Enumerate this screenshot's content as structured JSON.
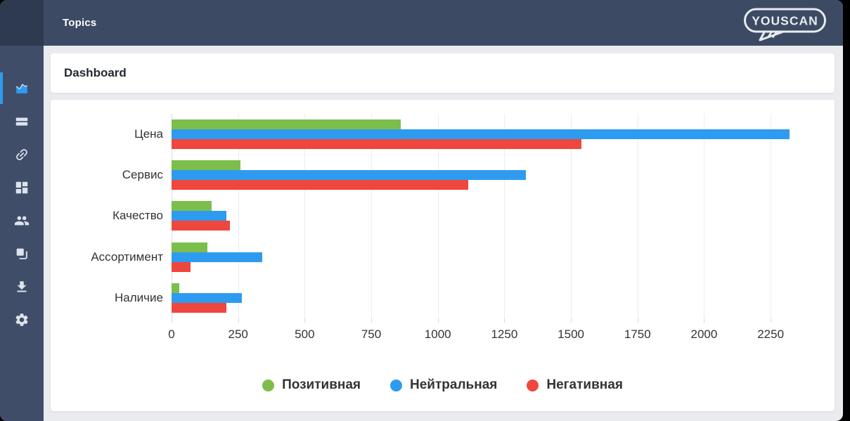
{
  "app": {
    "header_title": "Topics",
    "logo_text": "YOUSCAN",
    "page_title": "Dashboard"
  },
  "colors": {
    "header_bg": "#3C4A63",
    "header_corner_bg": "#2D3A50",
    "sidebar_bg": "#3F4D68",
    "accent_blue": "#2E9BF0",
    "positive_green": "#7CBE4B",
    "neutral_blue": "#2E9BF0",
    "negative_red": "#EF463D",
    "page_bg": "#E9EBEE"
  },
  "sidebar": {
    "items": [
      {
        "icon": "area-chart-icon",
        "active": true
      },
      {
        "icon": "rows-icon",
        "active": false
      },
      {
        "icon": "link-icon",
        "active": false
      },
      {
        "icon": "grid-icon",
        "active": false
      },
      {
        "icon": "users-icon",
        "active": false
      },
      {
        "icon": "copy-icon",
        "active": false
      },
      {
        "icon": "download-icon",
        "active": false
      },
      {
        "icon": "gear-icon",
        "active": false
      }
    ]
  },
  "chart_data": {
    "type": "bar",
    "orientation": "horizontal",
    "title": "",
    "categories": [
      "Цена",
      "Сервис",
      "Качество",
      "Ассортимент",
      "Наличие"
    ],
    "series": [
      {
        "name": "Позитивная",
        "color": "#7CBE4B",
        "values": [
          860,
          260,
          150,
          135,
          30
        ]
      },
      {
        "name": "Нейтральная",
        "color": "#2E9BF0",
        "values": [
          2320,
          1330,
          205,
          340,
          265
        ]
      },
      {
        "name": "Негативная",
        "color": "#EF463D",
        "values": [
          1540,
          1115,
          220,
          70,
          205
        ]
      }
    ],
    "xticks": [
      0,
      250,
      500,
      750,
      1000,
      1250,
      1500,
      1750,
      2000,
      2250
    ],
    "xlim": [
      0,
      2350
    ],
    "grid": true,
    "legend_position": "bottom"
  }
}
